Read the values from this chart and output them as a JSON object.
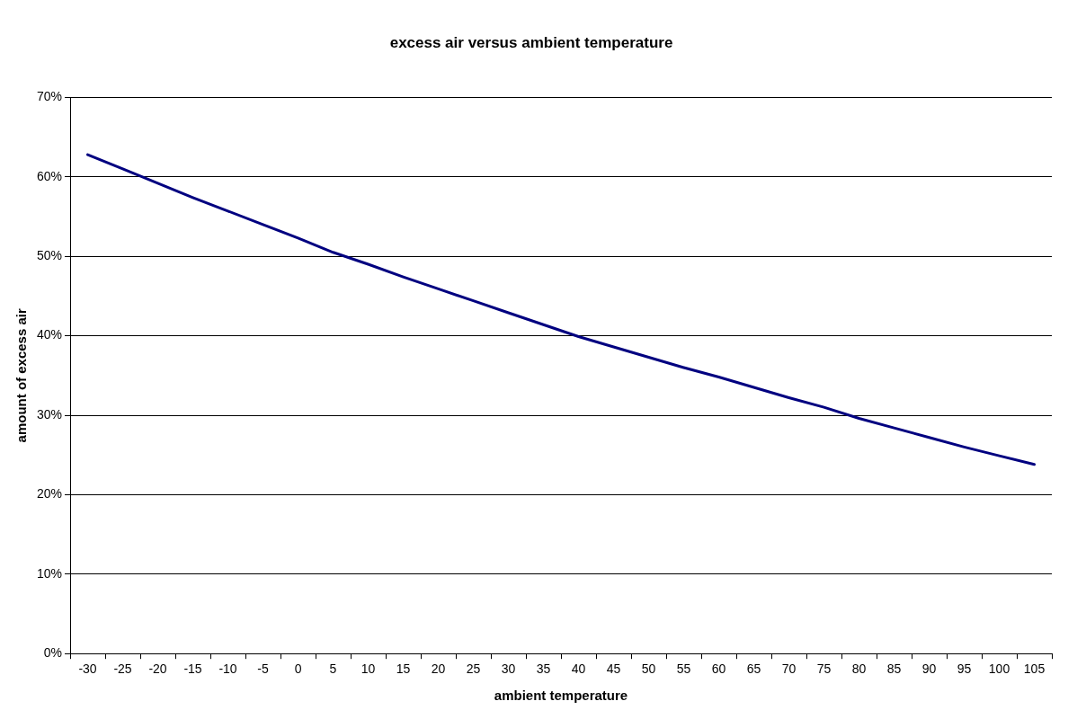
{
  "chart_data": {
    "type": "line",
    "title": "excess air versus ambient temperature",
    "xlabel": "ambient temperature",
    "ylabel": "amount of excess air",
    "categories": [
      "-30",
      "-25",
      "-20",
      "-15",
      "-10",
      "-5",
      "0",
      "5",
      "10",
      "15",
      "20",
      "25",
      "30",
      "35",
      "40",
      "45",
      "50",
      "55",
      "60",
      "65",
      "70",
      "75",
      "80",
      "85",
      "90",
      "95",
      "100",
      "105"
    ],
    "series": [
      {
        "color": "#000080",
        "values": [
          62.8,
          61.0,
          59.2,
          57.4,
          55.7,
          54.0,
          52.3,
          50.5,
          49.0,
          47.4,
          45.9,
          44.4,
          42.9,
          41.4,
          39.9,
          38.6,
          37.3,
          36.0,
          34.8,
          33.5,
          32.2,
          31.0,
          29.6,
          28.4,
          27.2,
          26.0,
          24.9,
          23.8
        ]
      }
    ],
    "ylim": [
      0,
      70
    ],
    "yticks": [
      {
        "value": 0,
        "label": "0%"
      },
      {
        "value": 10,
        "label": "10%"
      },
      {
        "value": 20,
        "label": "20%"
      },
      {
        "value": 30,
        "label": "30%"
      },
      {
        "value": 40,
        "label": "40%"
      },
      {
        "value": 50,
        "label": "50%"
      },
      {
        "value": 60,
        "label": "60%"
      },
      {
        "value": 70,
        "label": "70%"
      }
    ],
    "grid": "y",
    "legend": false,
    "marker": "none",
    "line_style": "solid"
  }
}
